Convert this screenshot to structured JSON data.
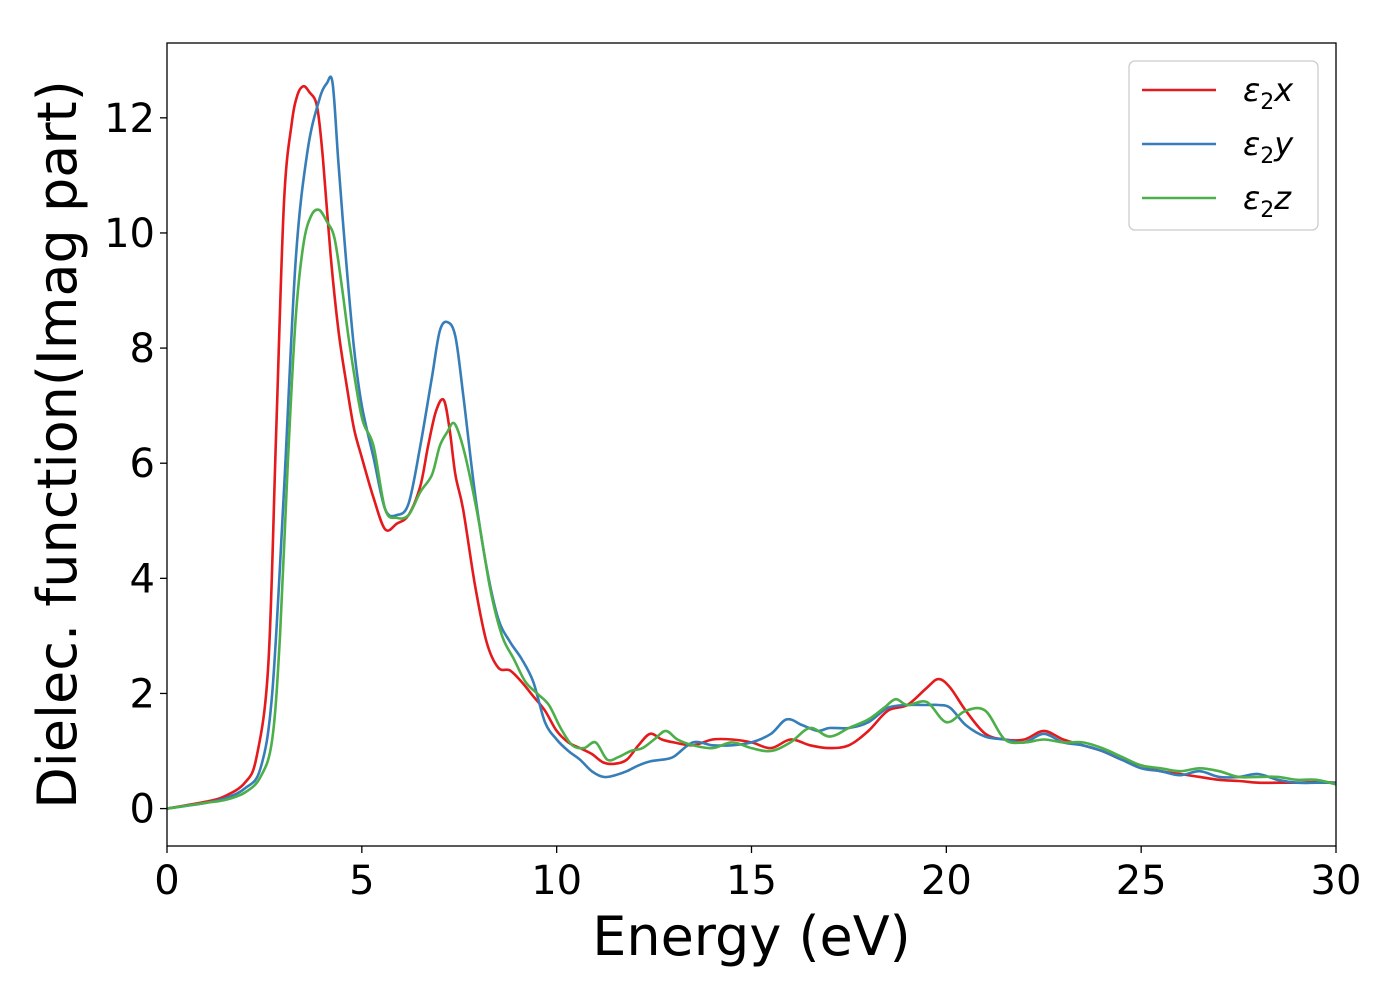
{
  "chart_data": {
    "type": "line",
    "xlabel": "Energy (eV)",
    "ylabel": "Dielec. function(Imag part)",
    "xlim": [
      0,
      30
    ],
    "ylim": [
      -0.65,
      13.3
    ],
    "xticks": [
      0,
      5,
      10,
      15,
      20,
      25,
      30
    ],
    "yticks": [
      0,
      2,
      4,
      6,
      8,
      10,
      12
    ],
    "grid": false,
    "legend_position": "top-right",
    "series": [
      {
        "name": "ε₂x",
        "legend": {
          "base": "ε",
          "sub": "2",
          "axis": "x"
        },
        "color": "#e41a1c",
        "x": [
          0,
          1,
          1.5,
          2,
          2.3,
          2.6,
          2.8,
          3.0,
          3.2,
          3.35,
          3.5,
          3.65,
          3.85,
          4.0,
          4.2,
          4.4,
          4.6,
          4.8,
          5.0,
          5.3,
          5.6,
          5.9,
          6.2,
          6.5,
          6.7,
          6.9,
          7.1,
          7.25,
          7.4,
          7.6,
          7.9,
          8.2,
          8.5,
          8.8,
          9.1,
          9.4,
          9.7,
          10.0,
          10.3,
          10.6,
          10.9,
          11.2,
          11.5,
          11.8,
          12.1,
          12.4,
          12.7,
          13.0,
          13.5,
          14.0,
          14.5,
          15.0,
          15.5,
          16.0,
          16.5,
          17.0,
          17.5,
          18.0,
          18.5,
          19.0,
          19.5,
          19.8,
          20.1,
          20.5,
          21.0,
          21.5,
          22.0,
          22.5,
          23.0,
          23.5,
          24.0,
          24.5,
          25.0,
          25.5,
          26.0,
          26.5,
          27.0,
          27.5,
          28.0,
          28.5,
          29.0,
          29.5,
          30.0
        ],
        "y": [
          0,
          0.12,
          0.22,
          0.45,
          0.9,
          2.5,
          6.5,
          10.5,
          11.9,
          12.4,
          12.55,
          12.45,
          12.2,
          11.3,
          9.6,
          8.3,
          7.4,
          6.6,
          6.1,
          5.4,
          4.85,
          4.95,
          5.1,
          5.6,
          6.3,
          6.9,
          7.1,
          6.6,
          5.8,
          5.2,
          3.9,
          2.9,
          2.45,
          2.4,
          2.2,
          1.95,
          1.7,
          1.35,
          1.15,
          1.05,
          0.95,
          0.8,
          0.78,
          0.85,
          1.1,
          1.3,
          1.2,
          1.15,
          1.1,
          1.2,
          1.2,
          1.15,
          1.05,
          1.2,
          1.1,
          1.05,
          1.1,
          1.35,
          1.7,
          1.8,
          2.1,
          2.25,
          2.1,
          1.7,
          1.3,
          1.2,
          1.2,
          1.35,
          1.2,
          1.1,
          1.0,
          0.85,
          0.75,
          0.65,
          0.6,
          0.55,
          0.5,
          0.48,
          0.45,
          0.45,
          0.45,
          0.46,
          0.45
        ]
      },
      {
        "name": "ε₂y",
        "legend": {
          "base": "ε",
          "sub": "2",
          "axis": "y"
        },
        "color": "#377eb8",
        "x": [
          0,
          1,
          1.5,
          2,
          2.4,
          2.7,
          3.0,
          3.3,
          3.6,
          3.9,
          4.1,
          4.25,
          4.4,
          4.6,
          4.8,
          5.0,
          5.3,
          5.6,
          5.9,
          6.2,
          6.5,
          6.8,
          7.0,
          7.2,
          7.4,
          7.6,
          7.9,
          8.2,
          8.5,
          8.8,
          9.1,
          9.4,
          9.7,
          10.0,
          10.3,
          10.6,
          10.9,
          11.2,
          11.5,
          11.8,
          12.1,
          12.4,
          12.7,
          13.0,
          13.5,
          14.0,
          14.5,
          15.0,
          15.5,
          15.9,
          16.3,
          16.7,
          17.0,
          17.5,
          18.0,
          18.5,
          19.0,
          19.5,
          19.8,
          20.1,
          20.5,
          21.0,
          21.5,
          22.0,
          22.5,
          23.0,
          23.5,
          24.0,
          24.5,
          25.0,
          25.5,
          26.0,
          26.5,
          27.0,
          27.5,
          28.0,
          28.5,
          29.0,
          29.5,
          30.0
        ],
        "y": [
          0,
          0.1,
          0.18,
          0.35,
          0.7,
          2.0,
          5.5,
          9.5,
          11.4,
          12.3,
          12.6,
          12.6,
          11.2,
          9.5,
          8.0,
          7.0,
          6.1,
          5.2,
          5.1,
          5.3,
          6.3,
          7.5,
          8.3,
          8.45,
          8.2,
          7.2,
          5.5,
          4.2,
          3.3,
          2.9,
          2.6,
          2.2,
          1.5,
          1.2,
          1.0,
          0.85,
          0.65,
          0.55,
          0.58,
          0.65,
          0.75,
          0.82,
          0.85,
          0.9,
          1.15,
          1.1,
          1.1,
          1.15,
          1.3,
          1.55,
          1.45,
          1.35,
          1.4,
          1.4,
          1.5,
          1.75,
          1.8,
          1.8,
          1.8,
          1.75,
          1.45,
          1.25,
          1.2,
          1.15,
          1.3,
          1.15,
          1.1,
          1.0,
          0.85,
          0.7,
          0.65,
          0.58,
          0.65,
          0.55,
          0.55,
          0.6,
          0.5,
          0.45,
          0.45,
          0.45
        ]
      },
      {
        "name": "ε₂z",
        "legend": {
          "base": "ε",
          "sub": "2",
          "axis": "z"
        },
        "color": "#4daf4a",
        "x": [
          0,
          1,
          1.5,
          2,
          2.4,
          2.7,
          2.9,
          3.1,
          3.3,
          3.5,
          3.7,
          3.9,
          4.1,
          4.3,
          4.5,
          4.7,
          5.0,
          5.3,
          5.6,
          5.9,
          6.2,
          6.5,
          6.8,
          7.0,
          7.2,
          7.35,
          7.5,
          7.7,
          8.0,
          8.3,
          8.6,
          8.9,
          9.2,
          9.5,
          9.8,
          10.1,
          10.4,
          10.7,
          11.0,
          11.3,
          11.6,
          11.9,
          12.2,
          12.5,
          12.8,
          13.1,
          13.5,
          14.0,
          14.5,
          15.0,
          15.5,
          16.0,
          16.5,
          17.0,
          17.5,
          18.0,
          18.4,
          18.7,
          19.0,
          19.5,
          20.0,
          20.5,
          21.0,
          21.5,
          22.0,
          22.5,
          23.0,
          23.5,
          24.0,
          24.5,
          25.0,
          25.5,
          26.0,
          26.5,
          27.0,
          27.5,
          28.0,
          28.5,
          29.0,
          29.5,
          30.0
        ],
        "y": [
          0,
          0.1,
          0.15,
          0.28,
          0.55,
          1.2,
          3.0,
          6.0,
          8.5,
          9.8,
          10.3,
          10.4,
          10.2,
          9.9,
          9.0,
          8.0,
          6.8,
          6.3,
          5.2,
          5.05,
          5.1,
          5.5,
          5.8,
          6.3,
          6.55,
          6.7,
          6.5,
          6.0,
          5.0,
          3.8,
          3.0,
          2.6,
          2.2,
          2.0,
          1.8,
          1.4,
          1.1,
          1.05,
          1.15,
          0.85,
          0.9,
          1.0,
          1.05,
          1.2,
          1.35,
          1.2,
          1.1,
          1.05,
          1.15,
          1.05,
          1.0,
          1.15,
          1.4,
          1.25,
          1.4,
          1.55,
          1.75,
          1.9,
          1.8,
          1.85,
          1.5,
          1.7,
          1.7,
          1.2,
          1.15,
          1.2,
          1.15,
          1.15,
          1.05,
          0.9,
          0.75,
          0.7,
          0.65,
          0.7,
          0.65,
          0.55,
          0.55,
          0.55,
          0.5,
          0.5,
          0.42
        ]
      }
    ]
  }
}
